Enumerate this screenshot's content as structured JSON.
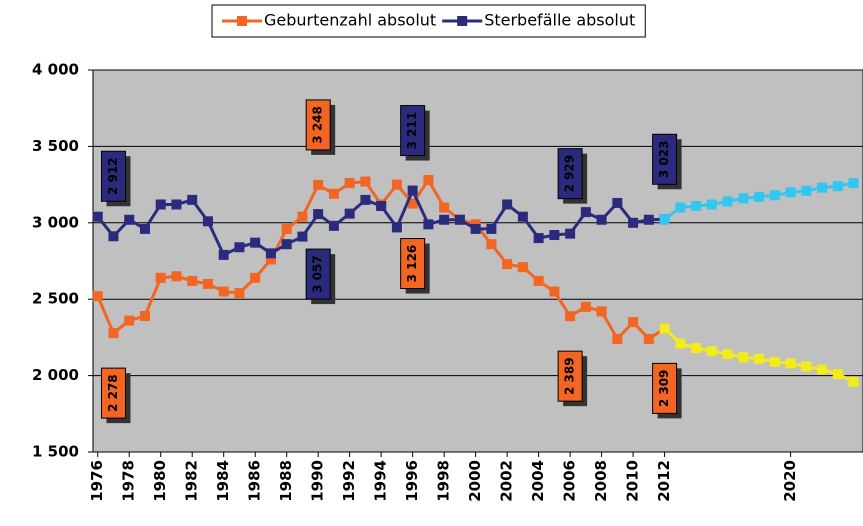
{
  "chart_data": {
    "type": "line",
    "x": [
      1976,
      1977,
      1978,
      1979,
      1980,
      1981,
      1982,
      1983,
      1984,
      1985,
      1986,
      1987,
      1988,
      1989,
      1990,
      1991,
      1992,
      1993,
      1994,
      1995,
      1996,
      1997,
      1998,
      1999,
      2000,
      2001,
      2002,
      2003,
      2004,
      2005,
      2006,
      2007,
      2008,
      2009,
      2010,
      2011,
      2012,
      2013,
      2014,
      2015,
      2016,
      2017,
      2018,
      2019,
      2020,
      2021,
      2022,
      2023,
      2024
    ],
    "series": [
      {
        "name": "Geburtenzahl absolut",
        "color": "#f26522",
        "values": [
          2520,
          2278,
          2360,
          2390,
          2640,
          2650,
          2620,
          2600,
          2550,
          2540,
          2640,
          2760,
          2960,
          3040,
          3248,
          3190,
          3260,
          3270,
          3120,
          3250,
          3126,
          3280,
          3100,
          3020,
          2990,
          2860,
          2730,
          2710,
          2620,
          2550,
          2389,
          2450,
          2420,
          2240,
          2350,
          2240,
          2309,
          null,
          null,
          null,
          null,
          null,
          null,
          null,
          null,
          null,
          null,
          null,
          null
        ],
        "value_labels": [
          null,
          "2 278",
          null,
          null,
          null,
          null,
          null,
          null,
          null,
          null,
          null,
          null,
          null,
          null,
          "3 248",
          null,
          null,
          null,
          null,
          null,
          "3 126",
          null,
          null,
          null,
          null,
          null,
          null,
          null,
          null,
          null,
          "2 389",
          null,
          null,
          null,
          null,
          null,
          "2 309",
          null,
          null,
          null,
          null,
          null,
          null,
          null,
          null,
          null,
          null,
          null,
          null
        ]
      },
      {
        "name": "Sterbefälle absolut",
        "color": "#2b2b7e",
        "values": [
          3040,
          2912,
          3020,
          2960,
          3120,
          3120,
          3150,
          3010,
          2790,
          2840,
          2870,
          2800,
          2860,
          2910,
          3057,
          2980,
          3060,
          3150,
          3110,
          2970,
          3211,
          2990,
          3020,
          3020,
          2960,
          2960,
          3120,
          3040,
          2900,
          2920,
          2929,
          3070,
          3020,
          3130,
          3000,
          3020,
          3023,
          null,
          null,
          null,
          null,
          null,
          null,
          null,
          null,
          null,
          null,
          null,
          null
        ],
        "value_labels": [
          null,
          "2 912",
          null,
          null,
          null,
          null,
          null,
          null,
          null,
          null,
          null,
          null,
          null,
          null,
          "3 057",
          null,
          null,
          null,
          null,
          null,
          "3 211",
          null,
          null,
          null,
          null,
          null,
          null,
          null,
          null,
          null,
          "2 929",
          null,
          null,
          null,
          null,
          null,
          "3 023",
          null,
          null,
          null,
          null,
          null,
          null,
          null,
          null,
          null,
          null,
          null,
          null
        ]
      },
      {
        "color": "#f2ec1a",
        "values": [
          null,
          null,
          null,
          null,
          null,
          null,
          null,
          null,
          null,
          null,
          null,
          null,
          null,
          null,
          null,
          null,
          null,
          null,
          null,
          null,
          null,
          null,
          null,
          null,
          null,
          null,
          null,
          null,
          null,
          null,
          null,
          null,
          null,
          null,
          null,
          null,
          2309,
          2210,
          2180,
          2160,
          2140,
          2120,
          2110,
          2090,
          2080,
          2060,
          2040,
          2010,
          1960
        ]
      },
      {
        "color": "#33c6f0",
        "values": [
          null,
          null,
          null,
          null,
          null,
          null,
          null,
          null,
          null,
          null,
          null,
          null,
          null,
          null,
          null,
          null,
          null,
          null,
          null,
          null,
          null,
          null,
          null,
          null,
          null,
          null,
          null,
          null,
          null,
          null,
          null,
          null,
          null,
          null,
          null,
          null,
          3023,
          3100,
          3110,
          3120,
          3140,
          3160,
          3170,
          3180,
          3200,
          3210,
          3230,
          3240,
          3260
        ]
      }
    ],
    "xlim": [
      1975.7,
      2024.6
    ],
    "xticks": [
      1976,
      1978,
      1980,
      1982,
      1984,
      1986,
      1988,
      1990,
      1992,
      1994,
      1996,
      1998,
      2000,
      2002,
      2004,
      2006,
      2008,
      2010,
      2012,
      2020
    ],
    "ylim": [
      1500,
      4000
    ],
    "yticks": [
      {
        "value": 1500,
        "label": "1 500"
      },
      {
        "value": 2000,
        "label": "2 000"
      },
      {
        "value": 2500,
        "label": "2 500"
      },
      {
        "value": 3000,
        "label": "3 000"
      },
      {
        "value": 3500,
        "label": "3 500"
      },
      {
        "value": 4000,
        "label": "4 000"
      }
    ],
    "grid": true,
    "legend": "top"
  }
}
